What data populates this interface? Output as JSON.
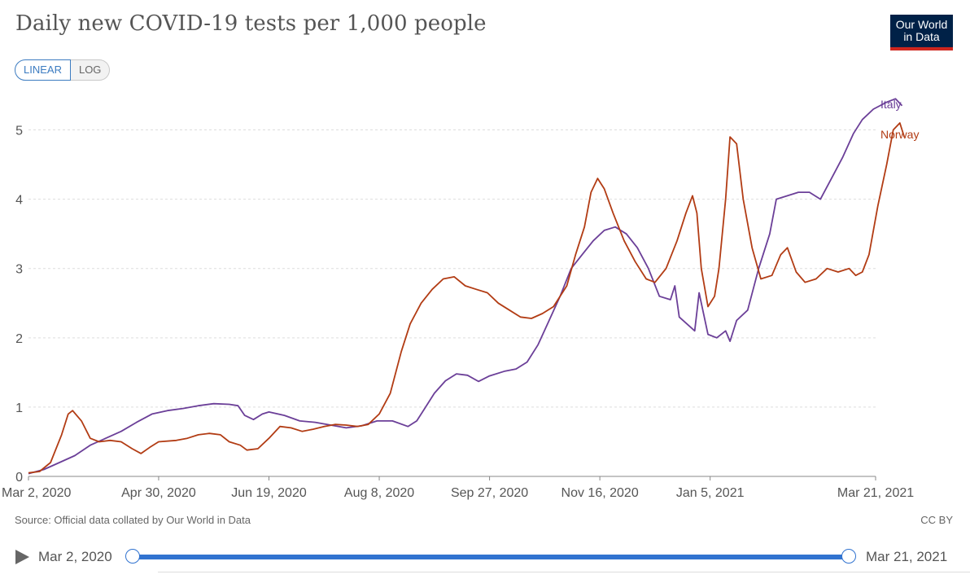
{
  "header": {
    "title": "Daily new COVID-19 tests per 1,000 people",
    "logo_line1": "Our World",
    "logo_line2": "in Data"
  },
  "scale_toggle": {
    "linear_label": "LINEAR",
    "log_label": "LOG",
    "selected": "LINEAR"
  },
  "footer": {
    "source": "Source: Official data collated by Our World in Data",
    "license": "CC BY"
  },
  "timeline": {
    "start_label": "Mar 2, 2020",
    "end_label": "Mar 21, 2021",
    "play_icon": "play-icon"
  },
  "colors": {
    "italy": "#6b3f98",
    "norway": "#b23c14",
    "accent": "#3173d0",
    "logo_bg": "#002147",
    "logo_bar": "#ce261e"
  },
  "chart_data": {
    "type": "line",
    "title": "Daily new COVID-19 tests per 1,000 people",
    "xlabel": "",
    "ylabel": "",
    "x_start": "2020-03-02",
    "x_end": "2021-03-21",
    "xlim": [
      "2020-03-02",
      "2021-03-21"
    ],
    "ylim": [
      0,
      5.5
    ],
    "yticks": [
      0,
      1,
      2,
      3,
      4,
      5
    ],
    "xtick_labels": [
      "Mar 2, 2020",
      "Apr 30, 2020",
      "Jun 19, 2020",
      "Aug 8, 2020",
      "Sep 27, 2020",
      "Nov 16, 2020",
      "Jan 5, 2021",
      "Mar 21, 2021"
    ],
    "xtick_dates": [
      "2020-03-02",
      "2020-04-30",
      "2020-06-19",
      "2020-08-08",
      "2020-09-27",
      "2020-11-16",
      "2021-01-05",
      "2021-03-21"
    ],
    "grid": "horizontal dashed",
    "legend": "line-end labels",
    "series": [
      {
        "name": "Italy",
        "points": [
          [
            "2020-03-02",
            0.04
          ],
          [
            "2020-03-09",
            0.1
          ],
          [
            "2020-03-16",
            0.2
          ],
          [
            "2020-03-23",
            0.3
          ],
          [
            "2020-03-30",
            0.45
          ],
          [
            "2020-04-06",
            0.55
          ],
          [
            "2020-04-13",
            0.65
          ],
          [
            "2020-04-20",
            0.78
          ],
          [
            "2020-04-27",
            0.9
          ],
          [
            "2020-05-04",
            0.95
          ],
          [
            "2020-05-11",
            0.98
          ],
          [
            "2020-05-18",
            1.02
          ],
          [
            "2020-05-25",
            1.05
          ],
          [
            "2020-06-01",
            1.04
          ],
          [
            "2020-06-05",
            1.02
          ],
          [
            "2020-06-08",
            0.88
          ],
          [
            "2020-06-12",
            0.82
          ],
          [
            "2020-06-16",
            0.9
          ],
          [
            "2020-06-19",
            0.93
          ],
          [
            "2020-06-26",
            0.88
          ],
          [
            "2020-07-03",
            0.8
          ],
          [
            "2020-07-10",
            0.78
          ],
          [
            "2020-07-17",
            0.74
          ],
          [
            "2020-07-24",
            0.7
          ],
          [
            "2020-07-31",
            0.73
          ],
          [
            "2020-08-07",
            0.8
          ],
          [
            "2020-08-14",
            0.8
          ],
          [
            "2020-08-21",
            0.72
          ],
          [
            "2020-08-25",
            0.8
          ],
          [
            "2020-08-29",
            1.0
          ],
          [
            "2020-09-02",
            1.2
          ],
          [
            "2020-09-07",
            1.38
          ],
          [
            "2020-09-12",
            1.48
          ],
          [
            "2020-09-17",
            1.46
          ],
          [
            "2020-09-22",
            1.37
          ],
          [
            "2020-09-27",
            1.45
          ],
          [
            "2020-10-04",
            1.52
          ],
          [
            "2020-10-09",
            1.55
          ],
          [
            "2020-10-14",
            1.65
          ],
          [
            "2020-10-19",
            1.9
          ],
          [
            "2020-10-24",
            2.25
          ],
          [
            "2020-10-29",
            2.6
          ],
          [
            "2020-11-03",
            3.0
          ],
          [
            "2020-11-08",
            3.2
          ],
          [
            "2020-11-13",
            3.4
          ],
          [
            "2020-11-18",
            3.55
          ],
          [
            "2020-11-23",
            3.6
          ],
          [
            "2020-11-28",
            3.5
          ],
          [
            "2020-12-03",
            3.3
          ],
          [
            "2020-12-08",
            3.0
          ],
          [
            "2020-12-13",
            2.6
          ],
          [
            "2020-12-18",
            2.55
          ],
          [
            "2020-12-20",
            2.75
          ],
          [
            "2020-12-22",
            2.3
          ],
          [
            "2020-12-29",
            2.1
          ],
          [
            "2020-12-31",
            2.65
          ],
          [
            "2021-01-04",
            2.05
          ],
          [
            "2021-01-08",
            2.0
          ],
          [
            "2021-01-12",
            2.1
          ],
          [
            "2021-01-14",
            1.95
          ],
          [
            "2021-01-17",
            2.25
          ],
          [
            "2021-01-22",
            2.4
          ],
          [
            "2021-01-27",
            3.0
          ],
          [
            "2021-02-01",
            3.5
          ],
          [
            "2021-02-04",
            4.0
          ],
          [
            "2021-02-09",
            4.05
          ],
          [
            "2021-02-14",
            4.1
          ],
          [
            "2021-02-19",
            4.1
          ],
          [
            "2021-02-24",
            4.0
          ],
          [
            "2021-03-01",
            4.3
          ],
          [
            "2021-03-06",
            4.6
          ],
          [
            "2021-03-11",
            4.95
          ],
          [
            "2021-03-15",
            5.15
          ],
          [
            "2021-03-20",
            5.3
          ],
          [
            "2021-03-26",
            5.4
          ],
          [
            "2021-03-30",
            5.45
          ],
          [
            "2021-04-02",
            5.35
          ]
        ]
      },
      {
        "name": "Norway",
        "points": [
          [
            "2020-03-02",
            0.05
          ],
          [
            "2020-03-07",
            0.07
          ],
          [
            "2020-03-12",
            0.2
          ],
          [
            "2020-03-17",
            0.6
          ],
          [
            "2020-03-20",
            0.9
          ],
          [
            "2020-03-22",
            0.95
          ],
          [
            "2020-03-26",
            0.8
          ],
          [
            "2020-03-30",
            0.55
          ],
          [
            "2020-04-03",
            0.5
          ],
          [
            "2020-04-08",
            0.52
          ],
          [
            "2020-04-13",
            0.5
          ],
          [
            "2020-04-18",
            0.4
          ],
          [
            "2020-04-22",
            0.33
          ],
          [
            "2020-04-26",
            0.42
          ],
          [
            "2020-04-30",
            0.5
          ],
          [
            "2020-05-08",
            0.52
          ],
          [
            "2020-05-13",
            0.55
          ],
          [
            "2020-05-18",
            0.6
          ],
          [
            "2020-05-23",
            0.62
          ],
          [
            "2020-05-28",
            0.6
          ],
          [
            "2020-06-01",
            0.5
          ],
          [
            "2020-06-06",
            0.45
          ],
          [
            "2020-06-09",
            0.38
          ],
          [
            "2020-06-14",
            0.4
          ],
          [
            "2020-06-19",
            0.55
          ],
          [
            "2020-06-24",
            0.72
          ],
          [
            "2020-06-29",
            0.7
          ],
          [
            "2020-07-04",
            0.65
          ],
          [
            "2020-07-09",
            0.68
          ],
          [
            "2020-07-14",
            0.72
          ],
          [
            "2020-07-19",
            0.75
          ],
          [
            "2020-07-24",
            0.74
          ],
          [
            "2020-07-29",
            0.72
          ],
          [
            "2020-08-03",
            0.75
          ],
          [
            "2020-08-08",
            0.9
          ],
          [
            "2020-08-13",
            1.2
          ],
          [
            "2020-08-18",
            1.8
          ],
          [
            "2020-08-22",
            2.2
          ],
          [
            "2020-08-27",
            2.5
          ],
          [
            "2020-09-01",
            2.7
          ],
          [
            "2020-09-06",
            2.85
          ],
          [
            "2020-09-11",
            2.88
          ],
          [
            "2020-09-16",
            2.75
          ],
          [
            "2020-09-21",
            2.7
          ],
          [
            "2020-09-26",
            2.65
          ],
          [
            "2020-10-01",
            2.5
          ],
          [
            "2020-10-06",
            2.4
          ],
          [
            "2020-10-11",
            2.3
          ],
          [
            "2020-10-16",
            2.28
          ],
          [
            "2020-10-21",
            2.35
          ],
          [
            "2020-10-26",
            2.45
          ],
          [
            "2020-11-01",
            2.75
          ],
          [
            "2020-11-05",
            3.2
          ],
          [
            "2020-11-09",
            3.6
          ],
          [
            "2020-11-12",
            4.1
          ],
          [
            "2020-11-15",
            4.3
          ],
          [
            "2020-11-18",
            4.15
          ],
          [
            "2020-11-22",
            3.8
          ],
          [
            "2020-11-27",
            3.4
          ],
          [
            "2020-12-02",
            3.1
          ],
          [
            "2020-12-07",
            2.85
          ],
          [
            "2020-12-11",
            2.8
          ],
          [
            "2020-12-16",
            3.0
          ],
          [
            "2020-12-21",
            3.4
          ],
          [
            "2020-12-25",
            3.8
          ],
          [
            "2020-12-28",
            4.05
          ],
          [
            "2020-12-30",
            3.8
          ],
          [
            "2021-01-01",
            3.0
          ],
          [
            "2021-01-04",
            2.45
          ],
          [
            "2021-01-07",
            2.6
          ],
          [
            "2021-01-09",
            3.0
          ],
          [
            "2021-01-12",
            4.0
          ],
          [
            "2021-01-14",
            4.9
          ],
          [
            "2021-01-17",
            4.8
          ],
          [
            "2021-01-20",
            4.0
          ],
          [
            "2021-01-24",
            3.3
          ],
          [
            "2021-01-28",
            2.85
          ],
          [
            "2021-02-02",
            2.9
          ],
          [
            "2021-02-06",
            3.2
          ],
          [
            "2021-02-09",
            3.3
          ],
          [
            "2021-02-13",
            2.95
          ],
          [
            "2021-02-17",
            2.8
          ],
          [
            "2021-02-22",
            2.85
          ],
          [
            "2021-02-27",
            3.0
          ],
          [
            "2021-03-04",
            2.95
          ],
          [
            "2021-03-09",
            3.0
          ],
          [
            "2021-03-12",
            2.9
          ],
          [
            "2021-03-15",
            2.95
          ],
          [
            "2021-03-18",
            3.2
          ],
          [
            "2021-03-22",
            3.9
          ],
          [
            "2021-03-26",
            4.5
          ],
          [
            "2021-03-29",
            5.0
          ],
          [
            "2021-04-01",
            5.1
          ],
          [
            "2021-04-03",
            4.9
          ]
        ]
      }
    ]
  }
}
